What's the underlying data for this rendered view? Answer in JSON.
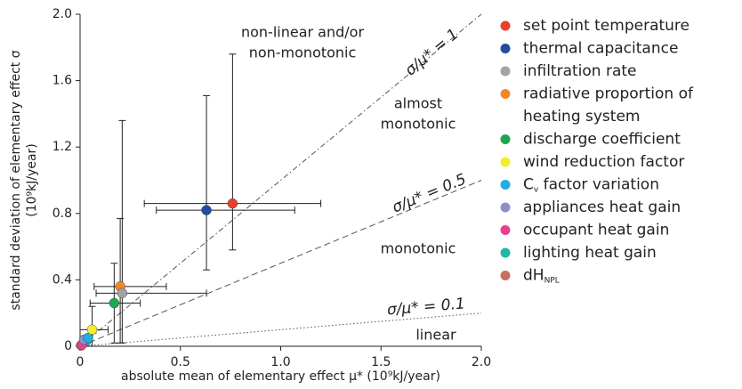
{
  "chart_data": {
    "type": "scatter",
    "xlabel": "absolute mean of elementary effect μ* (10⁹kJ/year)",
    "ylabel": [
      "standard deviation of elementary effect σ",
      "(10⁹kJ/year)"
    ],
    "xlim": [
      0,
      2.0
    ],
    "ylim": [
      0,
      2.0
    ],
    "xticks": [
      0,
      0.5,
      {
        "value": 1.0,
        "label": "1.0"
      },
      1.5,
      {
        "value": 2.0,
        "label": "2.0"
      }
    ],
    "yticks": [
      0,
      0.4,
      0.8,
      1.2,
      1.6,
      {
        "value": 2.0,
        "label": "2.0"
      }
    ],
    "ratio_lines": [
      {
        "ratio": 1,
        "label": "σ/μ* = 1",
        "dash": "6 3 1.5 3"
      },
      {
        "ratio": 0.5,
        "label": "σ/μ* = 0.5",
        "dash": "7 4"
      },
      {
        "ratio": 0.1,
        "label": "σ/μ* = 0.1",
        "dash": "1.5 2.5"
      }
    ],
    "regions": [
      [
        "non-linear and/or",
        "non-monotonic"
      ],
      [
        "almost",
        "monotonic"
      ],
      [
        "monotonic"
      ],
      [
        "linear"
      ]
    ],
    "series": [
      {
        "name": "set point temperature",
        "color": "#e8412c",
        "x": [
          0.76
        ],
        "values": [
          0.86
        ],
        "x_min": [
          0.32
        ],
        "x_max": [
          1.2
        ],
        "y_min": [
          0.58
        ],
        "y_max": [
          1.76
        ]
      },
      {
        "name": "thermal capacitance",
        "color": "#1f4e9c",
        "x": [
          0.63
        ],
        "values": [
          0.82
        ],
        "x_min": [
          0.38
        ],
        "x_max": [
          1.07
        ],
        "y_min": [
          0.46
        ],
        "y_max": [
          1.51
        ]
      },
      {
        "name": "infiltration rate",
        "color": "#a3a3a3",
        "x": [
          0.21
        ],
        "values": [
          0.32
        ],
        "x_min": [
          0.08
        ],
        "x_max": [
          0.63
        ],
        "y_min": [
          0.02
        ],
        "y_max": [
          1.36
        ]
      },
      {
        "name": [
          "radiative proportion of",
          "heating system"
        ],
        "color": "#f0882a",
        "x": [
          0.2
        ],
        "values": [
          0.36
        ],
        "x_min": [
          0.07
        ],
        "x_max": [
          0.43
        ],
        "y_min": [
          0.02
        ],
        "y_max": [
          0.77
        ]
      },
      {
        "name": "discharge coefficient",
        "color": "#1fa64e",
        "x": [
          0.17
        ],
        "values": [
          0.26
        ],
        "x_min": [
          0.05
        ],
        "x_max": [
          0.3
        ],
        "y_min": [
          0.02
        ],
        "y_max": [
          0.5
        ]
      },
      {
        "name": "wind reduction factor",
        "color": "#f4ec2c",
        "x": [
          0.06
        ],
        "values": [
          0.1
        ],
        "x_min": [
          0.0
        ],
        "x_max": [
          0.14
        ],
        "y_min": [
          0.0
        ],
        "y_max": [
          0.24
        ]
      },
      {
        "name": "C",
        "name_sub": "v",
        "name_after": " factor variation",
        "color": "#21ade6",
        "x": [
          0.04
        ],
        "values": [
          0.05
        ]
      },
      {
        "name": "appliances heat gain",
        "color": "#8e90cc",
        "x": [
          0.02
        ],
        "values": [
          0.04
        ]
      },
      {
        "name": "occupant heat gain",
        "color": "#e8408d",
        "x": [
          0.01
        ],
        "values": [
          0.01
        ]
      },
      {
        "name": "lighting heat gain",
        "color": "#1fb8a2",
        "x": [
          0.03
        ],
        "values": [
          0.03
        ]
      },
      {
        "name": "dH",
        "name_sub": "NPL",
        "color": "#c87060",
        "x": [
          0.005
        ],
        "values": [
          0.005
        ]
      }
    ]
  }
}
